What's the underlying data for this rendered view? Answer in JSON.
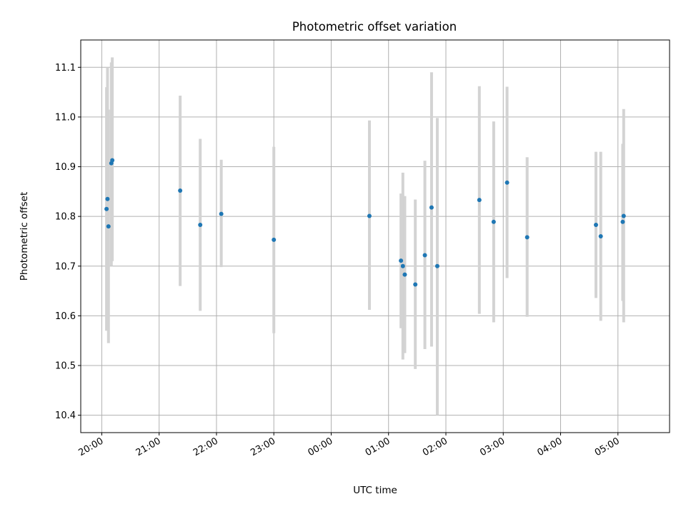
{
  "chart_data": {
    "type": "scatter",
    "title": "Photometric offset variation",
    "xlabel": "UTC time",
    "ylabel": "Photometric offset",
    "x_axis_type": "time",
    "xlim": [
      "19:38",
      "05:54"
    ],
    "ylim": [
      10.365,
      11.155
    ],
    "grid": true,
    "yticks": [
      10.4,
      10.5,
      10.6,
      10.7,
      10.8,
      10.9,
      11.0,
      11.1
    ],
    "xticks": [
      {
        "time": "20:00",
        "label": "20:00"
      },
      {
        "time": "21:00",
        "label": "21:00"
      },
      {
        "time": "22:00",
        "label": "22:00"
      },
      {
        "time": "23:00",
        "label": "23:00"
      },
      {
        "time": "00:00",
        "label": "00:00"
      },
      {
        "time": "01:00",
        "label": "01:00"
      },
      {
        "time": "02:00",
        "label": "02:00"
      },
      {
        "time": "03:00",
        "label": "03:00"
      },
      {
        "time": "04:00",
        "label": "04:00"
      },
      {
        "time": "05:00",
        "label": "05:00"
      }
    ],
    "colors": {
      "point": "#1f77b4",
      "errorbar": "#d3d3d3"
    },
    "series": [
      {
        "points": [
          {
            "x": "20:05",
            "y": 10.815,
            "ylow": 10.57,
            "yhigh": 11.06
          },
          {
            "x": "20:06",
            "y": 10.835,
            "ylow": 10.57,
            "yhigh": 11.1
          },
          {
            "x": "20:07",
            "y": 10.78,
            "ylow": 10.545,
            "yhigh": 11.015
          },
          {
            "x": "20:10",
            "y": 10.907,
            "ylow": 10.7,
            "yhigh": 11.11
          },
          {
            "x": "20:11",
            "y": 10.913,
            "ylow": 10.71,
            "yhigh": 11.12
          },
          {
            "x": "21:22",
            "y": 10.852,
            "ylow": 10.66,
            "yhigh": 11.043
          },
          {
            "x": "21:43",
            "y": 10.783,
            "ylow": 10.61,
            "yhigh": 10.956
          },
          {
            "x": "22:05",
            "y": 10.805,
            "ylow": 10.698,
            "yhigh": 10.914
          },
          {
            "x": "23:00",
            "y": 10.753,
            "ylow": 10.565,
            "yhigh": 10.94
          },
          {
            "x": "00:40",
            "y": 10.801,
            "ylow": 10.612,
            "yhigh": 10.993
          },
          {
            "x": "01:13",
            "y": 10.711,
            "ylow": 10.575,
            "yhigh": 10.846
          },
          {
            "x": "01:15",
            "y": 10.7,
            "ylow": 10.512,
            "yhigh": 10.888
          },
          {
            "x": "01:17",
            "y": 10.683,
            "ylow": 10.525,
            "yhigh": 10.841
          },
          {
            "x": "01:28",
            "y": 10.663,
            "ylow": 10.493,
            "yhigh": 10.834
          },
          {
            "x": "01:38",
            "y": 10.722,
            "ylow": 10.533,
            "yhigh": 10.912
          },
          {
            "x": "01:45",
            "y": 10.818,
            "ylow": 10.538,
            "yhigh": 11.09
          },
          {
            "x": "01:51",
            "y": 10.7,
            "ylow": 10.4,
            "yhigh": 10.998
          },
          {
            "x": "02:35",
            "y": 10.833,
            "ylow": 10.604,
            "yhigh": 11.062
          },
          {
            "x": "02:50",
            "y": 10.789,
            "ylow": 10.587,
            "yhigh": 10.991
          },
          {
            "x": "03:04",
            "y": 10.868,
            "ylow": 10.676,
            "yhigh": 11.061
          },
          {
            "x": "03:25",
            "y": 10.758,
            "ylow": 10.598,
            "yhigh": 10.919
          },
          {
            "x": "04:37",
            "y": 10.783,
            "ylow": 10.636,
            "yhigh": 10.93
          },
          {
            "x": "04:42",
            "y": 10.76,
            "ylow": 10.59,
            "yhigh": 10.93
          },
          {
            "x": "05:05",
            "y": 10.789,
            "ylow": 10.63,
            "yhigh": 10.946
          },
          {
            "x": "05:06",
            "y": 10.801,
            "ylow": 10.587,
            "yhigh": 11.016
          }
        ]
      }
    ]
  }
}
